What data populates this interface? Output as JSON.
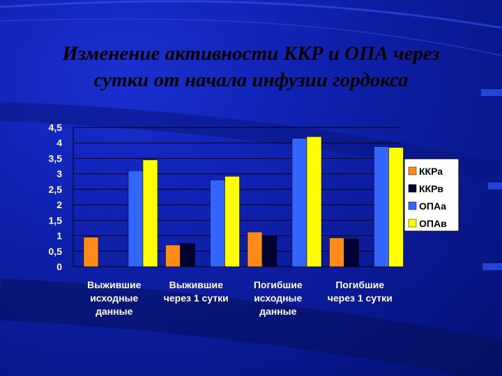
{
  "title": {
    "line1": "Изменение активности ККР и ОПА через",
    "line2": "сутки от начала инфузии гордокса"
  },
  "chart_data": {
    "type": "bar",
    "categories": [
      [
        "Выжившие",
        "исходные",
        "данные"
      ],
      [
        "Выжившие",
        "через 1 сутки"
      ],
      [
        "Погибшие",
        "исходные",
        "данные"
      ],
      [
        "Погибшие",
        "через 1 сутки"
      ]
    ],
    "series": [
      {
        "name": "ККРа",
        "color": "#ff8c1a",
        "values": [
          0.95,
          0.7,
          1.12,
          0.93
        ]
      },
      {
        "name": "ККРв",
        "color": "#000033",
        "values": [
          0.0,
          0.75,
          1.0,
          0.9
        ]
      },
      {
        "name": "ОПАа",
        "color": "#3366ff",
        "values": [
          3.1,
          2.8,
          4.15,
          3.88
        ]
      },
      {
        "name": "ОПАв",
        "color": "#ffff00",
        "values": [
          3.45,
          2.92,
          4.2,
          3.85
        ]
      }
    ],
    "y_ticks": [
      "0",
      "0,5",
      "1",
      "1,5",
      "2",
      "2,5",
      "3",
      "3,5",
      "4",
      "4,5"
    ],
    "ylim": [
      0,
      4.5
    ],
    "grid": true,
    "legend_position": "right"
  }
}
